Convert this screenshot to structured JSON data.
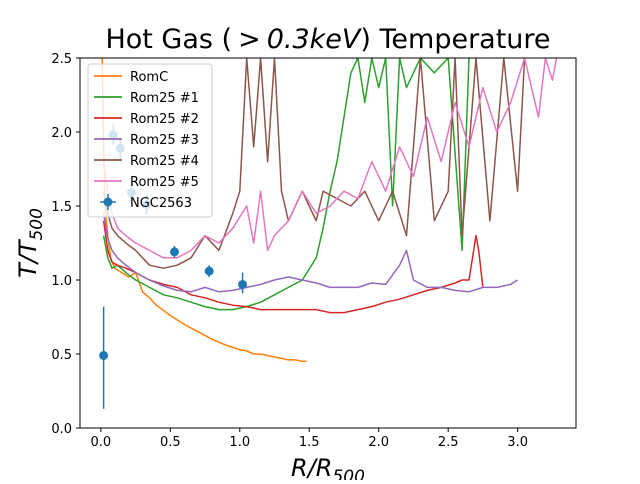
{
  "chart_data": {
    "type": "line",
    "title": "Hot Gas ( > 0.3keV) Temperature",
    "title_parts": {
      "prefix": "Hot Gas (",
      "gt": ">",
      "num": "0.3",
      "unit": "keV",
      "suffix": ") Temperature"
    },
    "xlabel": "R/R500",
    "xlabel_parts": {
      "main": "R/R",
      "sub": "500"
    },
    "ylabel": "T/T500",
    "ylabel_parts": {
      "main": "T/T",
      "sub": "500"
    },
    "xlim": [
      -0.15,
      3.42
    ],
    "ylim": [
      0,
      2.5
    ],
    "xticks": [
      0.0,
      0.5,
      1.0,
      1.5,
      2.0,
      2.5,
      3.0
    ],
    "xtick_labels": [
      "0.0",
      "0.5",
      "1.0",
      "1.5",
      "2.0",
      "2.5",
      "3.0"
    ],
    "yticks": [
      0.0,
      0.5,
      1.0,
      1.5,
      2.0,
      2.5
    ],
    "ytick_labels": [
      "0.0",
      "0.5",
      "1.0",
      "1.5",
      "2.0",
      "2.5"
    ],
    "legend_position": "top-left",
    "series": [
      {
        "name": "RomC",
        "color": "#ff7f0e",
        "x": [
          0.01,
          0.02,
          0.03,
          0.05,
          0.07,
          0.1,
          0.15,
          0.2,
          0.25,
          0.3,
          0.35,
          0.4,
          0.5,
          0.6,
          0.7,
          0.8,
          0.9,
          1.0,
          1.05,
          1.1,
          1.15,
          1.2,
          1.25,
          1.3,
          1.35,
          1.4,
          1.45,
          1.48
        ],
        "y": [
          2.5,
          1.9,
          1.5,
          1.3,
          1.15,
          1.08,
          1.05,
          1.02,
          1.05,
          0.92,
          0.88,
          0.83,
          0.76,
          0.7,
          0.65,
          0.6,
          0.56,
          0.53,
          0.52,
          0.5,
          0.5,
          0.49,
          0.48,
          0.47,
          0.46,
          0.46,
          0.45,
          0.45
        ]
      },
      {
        "name": "Rom25 #1",
        "color": "#2ca02c",
        "x": [
          0.02,
          0.05,
          0.08,
          0.12,
          0.18,
          0.25,
          0.35,
          0.45,
          0.55,
          0.65,
          0.75,
          0.85,
          0.95,
          1.05,
          1.15,
          1.25,
          1.35,
          1.45,
          1.55,
          1.6,
          1.65,
          1.7,
          1.75,
          1.8,
          1.85,
          1.9,
          1.95,
          2.0,
          2.05,
          2.1,
          2.15,
          2.2,
          2.3,
          2.4,
          2.5,
          2.6,
          2.65
        ],
        "y": [
          1.3,
          1.15,
          1.08,
          1.1,
          1.05,
          1.0,
          0.95,
          0.9,
          0.88,
          0.85,
          0.82,
          0.8,
          0.8,
          0.82,
          0.85,
          0.9,
          0.95,
          1.0,
          1.15,
          1.35,
          1.6,
          1.8,
          2.1,
          2.4,
          2.5,
          2.2,
          2.5,
          2.3,
          2.5,
          1.5,
          2.5,
          2.3,
          2.5,
          2.4,
          2.5,
          1.2,
          2.5
        ]
      },
      {
        "name": "Rom25 #2",
        "color": "#d62728",
        "x": [
          0.02,
          0.05,
          0.08,
          0.12,
          0.18,
          0.25,
          0.35,
          0.45,
          0.55,
          0.65,
          0.75,
          0.85,
          0.95,
          1.05,
          1.15,
          1.25,
          1.35,
          1.45,
          1.55,
          1.65,
          1.75,
          1.85,
          1.95,
          2.05,
          2.15,
          2.25,
          2.35,
          2.45,
          2.55,
          2.6,
          2.65,
          2.7,
          2.72,
          2.75
        ],
        "y": [
          1.4,
          1.2,
          1.12,
          1.1,
          1.08,
          1.05,
          1.0,
          0.97,
          0.95,
          0.9,
          0.88,
          0.85,
          0.83,
          0.82,
          0.8,
          0.8,
          0.8,
          0.8,
          0.8,
          0.78,
          0.78,
          0.8,
          0.82,
          0.85,
          0.87,
          0.9,
          0.93,
          0.95,
          0.98,
          1.0,
          1.0,
          1.3,
          1.2,
          0.95
        ]
      },
      {
        "name": "Rom25 #3",
        "color": "#9467bd",
        "x": [
          0.02,
          0.05,
          0.08,
          0.12,
          0.18,
          0.25,
          0.35,
          0.45,
          0.55,
          0.65,
          0.75,
          0.85,
          0.95,
          1.05,
          1.15,
          1.25,
          1.35,
          1.45,
          1.55,
          1.65,
          1.75,
          1.85,
          1.95,
          2.05,
          2.15,
          2.2,
          2.25,
          2.35,
          2.45,
          2.55,
          2.65,
          2.75,
          2.85,
          2.95,
          3.0
        ],
        "y": [
          1.45,
          1.28,
          1.2,
          1.15,
          1.1,
          1.05,
          1.0,
          0.96,
          0.93,
          0.92,
          0.95,
          0.92,
          0.93,
          0.95,
          0.97,
          1.0,
          1.02,
          1.0,
          0.98,
          0.95,
          0.95,
          0.95,
          0.98,
          0.97,
          1.1,
          1.2,
          1.0,
          0.95,
          0.95,
          0.93,
          0.92,
          0.95,
          0.95,
          0.97,
          1.0
        ]
      },
      {
        "name": "Rom25 #4",
        "color": "#8c564b",
        "x": [
          0.02,
          0.05,
          0.08,
          0.12,
          0.18,
          0.25,
          0.35,
          0.45,
          0.55,
          0.65,
          0.75,
          0.85,
          0.95,
          1.0,
          1.05,
          1.1,
          1.15,
          1.2,
          1.25,
          1.3,
          1.35,
          1.4,
          1.45,
          1.5,
          1.55,
          1.6,
          1.7,
          1.8,
          1.9,
          2.0,
          2.1,
          2.2,
          2.3,
          2.4,
          2.5,
          2.55,
          2.6,
          2.7,
          2.8,
          2.9,
          3.0,
          3.05
        ],
        "y": [
          1.6,
          1.45,
          1.35,
          1.3,
          1.25,
          1.2,
          1.1,
          1.08,
          1.1,
          1.15,
          1.3,
          1.2,
          1.45,
          1.6,
          2.5,
          1.9,
          2.5,
          1.8,
          2.5,
          1.6,
          1.4,
          1.5,
          1.6,
          1.5,
          1.4,
          1.6,
          1.55,
          1.5,
          1.6,
          1.4,
          1.6,
          1.3,
          2.5,
          1.4,
          1.6,
          2.5,
          1.3,
          2.5,
          1.4,
          2.5,
          1.6,
          2.5
        ]
      },
      {
        "name": "Rom25 #5",
        "color": "#e377c2",
        "x": [
          0.02,
          0.05,
          0.08,
          0.12,
          0.18,
          0.25,
          0.35,
          0.45,
          0.55,
          0.65,
          0.75,
          0.85,
          0.95,
          1.05,
          1.1,
          1.15,
          1.2,
          1.25,
          1.35,
          1.45,
          1.55,
          1.65,
          1.75,
          1.85,
          1.95,
          2.05,
          2.15,
          2.25,
          2.35,
          2.45,
          2.55,
          2.65,
          2.75,
          2.85,
          2.95,
          3.05,
          3.15,
          3.2,
          3.25,
          3.28
        ],
        "y": [
          1.8,
          1.6,
          1.45,
          1.35,
          1.3,
          1.25,
          1.2,
          1.15,
          1.15,
          1.2,
          1.3,
          1.25,
          1.35,
          1.5,
          1.25,
          1.6,
          1.2,
          1.3,
          1.4,
          1.6,
          1.45,
          1.5,
          1.6,
          1.55,
          1.8,
          1.6,
          1.9,
          1.7,
          2.1,
          1.8,
          2.2,
          1.9,
          2.3,
          2.0,
          2.2,
          2.5,
          2.1,
          2.5,
          2.35,
          2.5
        ]
      }
    ],
    "observations": {
      "name": "NGC2563",
      "color": "#1f77b4",
      "points": [
        {
          "x": 0.02,
          "y": 0.49,
          "yerr_low": 0.36,
          "yerr_high": 0.33
        },
        {
          "x": 0.09,
          "y": 1.98,
          "yerr_low": 0.07,
          "yerr_high": 0.07
        },
        {
          "x": 0.14,
          "y": 1.89,
          "yerr_low": 0.07,
          "yerr_high": 0.07
        },
        {
          "x": 0.22,
          "y": 1.59,
          "yerr_low": 0.07,
          "yerr_high": 0.07
        },
        {
          "x": 0.33,
          "y": 1.51,
          "yerr_low": 0.07,
          "yerr_high": 0.07
        },
        {
          "x": 0.53,
          "y": 1.19,
          "yerr_low": 0.04,
          "yerr_high": 0.04
        },
        {
          "x": 0.78,
          "y": 1.06,
          "yerr_low": 0.04,
          "yerr_high": 0.04
        },
        {
          "x": 1.02,
          "y": 0.97,
          "yerr_low": 0.06,
          "yerr_high": 0.08
        }
      ]
    }
  }
}
